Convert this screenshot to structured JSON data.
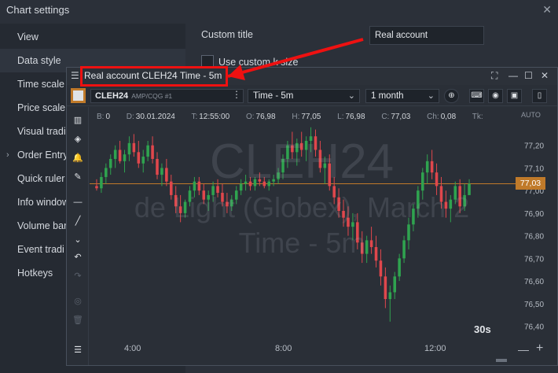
{
  "settings": {
    "title": "Chart settings",
    "close_icon": "close-icon",
    "sidebar": {
      "items": [
        {
          "label": "View"
        },
        {
          "label": "Data style"
        },
        {
          "label": "Time scale"
        },
        {
          "label": "Price scale"
        },
        {
          "label": "Visual tradi"
        },
        {
          "label": "Order Entry"
        },
        {
          "label": "Quick ruler"
        },
        {
          "label": "Info window"
        },
        {
          "label": "Volume bar"
        },
        {
          "label": "Event tradi"
        },
        {
          "label": "Hotkeys"
        }
      ]
    },
    "custom_title_label": "Custom title",
    "custom_title_value": "Real account",
    "use_custom_label": "Use custom k size"
  },
  "chart": {
    "title": "Real account CLEH24 Time - 5m",
    "symbol": "CLEH24",
    "symbol_sub": "AMP/CQG #1",
    "timeframe": "Time - 5m",
    "period": "1 month",
    "ohlc": {
      "b_label": "B:",
      "b": "0",
      "d_label": "D:",
      "d": "30.01.2024",
      "t_label": "T:",
      "t": "12:55:00",
      "o_label": "O:",
      "o": "76,98",
      "h_label": "H:",
      "h": "77,05",
      "l_label": "L:",
      "l": "76,98",
      "c_label": "C:",
      "c": "77,03",
      "ch_label": "Ch:",
      "ch": "0,08",
      "tk_label": "Tk:"
    },
    "watermark": {
      "symbol": "CLEH24",
      "name": "de Light (Globex), March 2",
      "tf": "Time - 5m"
    },
    "countdown": "30s",
    "price_axis_mode": "AUTO",
    "current_price": "77,03",
    "price_ticks": [
      "77,20",
      "77,10",
      "77,00",
      "76,90",
      "76,80",
      "76,70",
      "76,60",
      "76,50",
      "76,40"
    ],
    "time_ticks": [
      "4:00",
      "8:00",
      "12:00"
    ],
    "colors": {
      "up": "#2fa34f",
      "down": "#e0474c",
      "accent": "#c07a2a"
    }
  },
  "chart_data": {
    "type": "candlestick",
    "ylim": [
      76.36,
      77.3
    ],
    "last_price": 77.03,
    "x_ticks": [
      "4:00",
      "8:00",
      "12:00"
    ],
    "y_ticks": [
      77.2,
      77.1,
      77.0,
      76.9,
      76.8,
      76.7,
      76.6,
      76.5,
      76.4
    ],
    "candles": [
      [
        77.02,
        77.05,
        77.0,
        77.01
      ],
      [
        77.01,
        77.08,
        76.99,
        77.06
      ],
      [
        77.06,
        77.12,
        77.03,
        77.1
      ],
      [
        77.1,
        77.16,
        77.07,
        77.14
      ],
      [
        77.14,
        77.2,
        77.1,
        77.18
      ],
      [
        77.18,
        77.22,
        77.12,
        77.13
      ],
      [
        77.13,
        77.18,
        77.08,
        77.16
      ],
      [
        77.16,
        77.24,
        77.13,
        77.21
      ],
      [
        77.21,
        77.25,
        77.15,
        77.17
      ],
      [
        77.17,
        77.22,
        77.1,
        77.12
      ],
      [
        77.12,
        77.18,
        77.08,
        77.15
      ],
      [
        77.15,
        77.22,
        77.13,
        77.2
      ],
      [
        77.2,
        77.24,
        77.12,
        77.14
      ],
      [
        77.14,
        77.17,
        77.05,
        77.07
      ],
      [
        77.07,
        77.12,
        77.02,
        77.1
      ],
      [
        77.1,
        77.14,
        77.02,
        77.04
      ],
      [
        77.04,
        77.07,
        76.96,
        76.98
      ],
      [
        76.98,
        77.02,
        76.9,
        76.93
      ],
      [
        76.93,
        76.98,
        76.86,
        76.9
      ],
      [
        76.9,
        76.96,
        76.88,
        76.95
      ],
      [
        76.95,
        77.02,
        76.93,
        77.0
      ],
      [
        77.0,
        77.06,
        76.97,
        77.04
      ],
      [
        77.04,
        77.06,
        76.98,
        77.0
      ],
      [
        77.0,
        77.03,
        76.94,
        76.96
      ],
      [
        76.96,
        77.0,
        76.91,
        76.98
      ],
      [
        76.98,
        77.04,
        76.95,
        77.02
      ],
      [
        77.02,
        77.05,
        76.97,
        76.99
      ],
      [
        76.99,
        77.03,
        76.93,
        76.95
      ],
      [
        76.95,
        76.99,
        76.9,
        76.93
      ],
      [
        76.93,
        76.98,
        76.91,
        76.96
      ],
      [
        76.96,
        77.02,
        76.94,
        77.0
      ],
      [
        77.0,
        77.05,
        76.98,
        77.03
      ],
      [
        77.03,
        77.07,
        77.0,
        77.04
      ],
      [
        77.04,
        77.06,
        77.0,
        77.02
      ],
      [
        77.02,
        77.06,
        77.0,
        77.05
      ],
      [
        77.05,
        77.08,
        77.02,
        77.04
      ],
      [
        77.04,
        77.06,
        77.01,
        77.02
      ],
      [
        77.02,
        77.05,
        77.0,
        77.04
      ],
      [
        77.04,
        77.07,
        77.02,
        77.05
      ],
      [
        77.05,
        77.1,
        77.03,
        77.08
      ],
      [
        77.08,
        77.16,
        77.05,
        77.14
      ],
      [
        77.14,
        77.22,
        77.1,
        77.2
      ],
      [
        77.2,
        77.26,
        77.14,
        77.17
      ],
      [
        77.17,
        77.23,
        77.11,
        77.21
      ],
      [
        77.21,
        77.26,
        77.15,
        77.18
      ],
      [
        77.18,
        77.24,
        77.13,
        77.22
      ],
      [
        77.22,
        77.28,
        77.17,
        77.24
      ],
      [
        77.24,
        77.27,
        77.15,
        77.18
      ],
      [
        77.18,
        77.22,
        77.08,
        77.1
      ],
      [
        77.1,
        77.15,
        77.03,
        77.12
      ],
      [
        77.12,
        77.16,
        77.0,
        77.02
      ],
      [
        77.02,
        77.06,
        76.94,
        76.97
      ],
      [
        76.97,
        77.01,
        76.88,
        76.91
      ],
      [
        76.91,
        76.96,
        76.84,
        76.88
      ],
      [
        76.88,
        76.93,
        76.8,
        76.84
      ],
      [
        76.84,
        76.9,
        76.78,
        76.86
      ],
      [
        76.86,
        76.9,
        76.74,
        76.77
      ],
      [
        76.77,
        76.82,
        76.68,
        76.72
      ],
      [
        76.72,
        76.8,
        76.68,
        76.78
      ],
      [
        76.78,
        76.84,
        76.72,
        76.75
      ],
      [
        76.75,
        76.8,
        76.66,
        76.69
      ],
      [
        76.69,
        76.74,
        76.58,
        76.62
      ],
      [
        76.62,
        76.66,
        76.48,
        76.52
      ],
      [
        76.52,
        76.58,
        76.42,
        76.55
      ],
      [
        76.55,
        76.64,
        76.52,
        76.62
      ],
      [
        76.62,
        76.72,
        76.6,
        76.7
      ],
      [
        76.7,
        76.8,
        76.68,
        76.78
      ],
      [
        76.78,
        76.88,
        76.74,
        76.85
      ],
      [
        76.85,
        76.94,
        76.82,
        76.92
      ],
      [
        76.92,
        77.02,
        76.88,
        77.0
      ],
      [
        77.0,
        77.1,
        76.96,
        77.08
      ],
      [
        77.08,
        77.16,
        77.03,
        77.13
      ],
      [
        77.13,
        77.18,
        77.05,
        77.08
      ],
      [
        77.08,
        77.12,
        76.98,
        77.02
      ],
      [
        77.02,
        77.06,
        76.92,
        76.95
      ],
      [
        76.95,
        77.0,
        76.88,
        76.92
      ],
      [
        76.92,
        76.98,
        76.86,
        76.96
      ],
      [
        76.96,
        77.04,
        76.94,
        77.02
      ],
      [
        77.02,
        77.05,
        76.9,
        76.93
      ],
      [
        76.93,
        77.03,
        76.91,
        76.98
      ],
      [
        76.98,
        77.05,
        76.98,
        77.03
      ]
    ]
  }
}
